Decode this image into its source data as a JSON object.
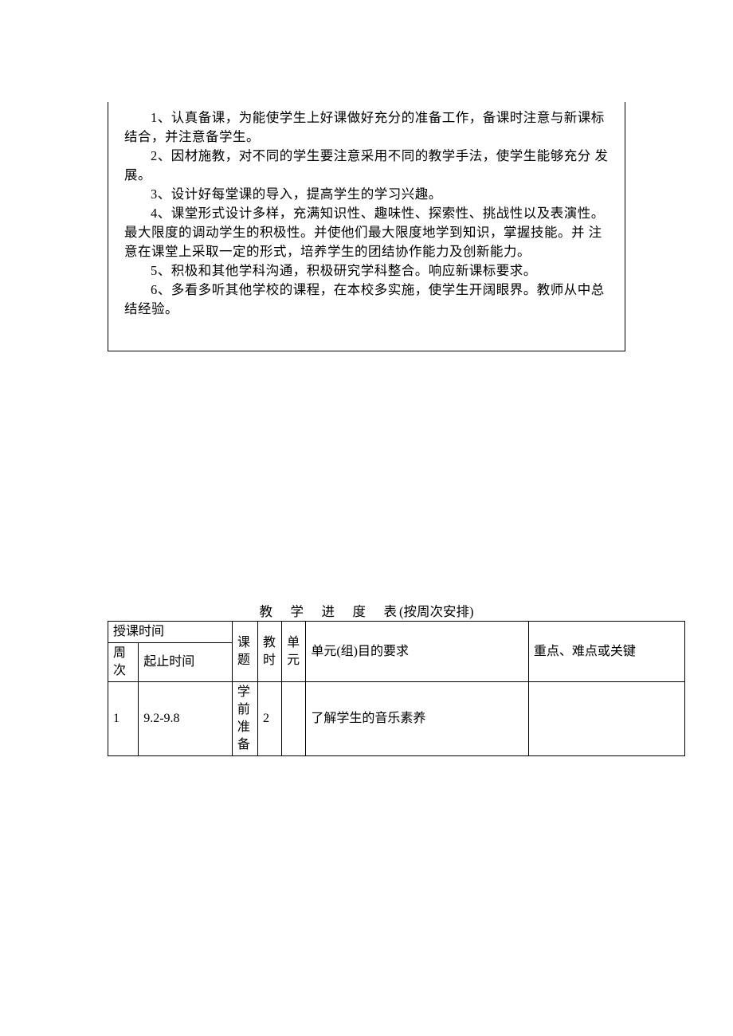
{
  "content_box": {
    "paragraphs": [
      "1、认真备课，为能使学生上好课做好充分的准备工作，备课时注意与新课标结合，并注意备学生。",
      "2、因材施教，对不同的学生要注意采用不同的教学手法，使学生能够充分 发展。",
      "3、设计好每堂课的导入，提高学生的学习兴趣。",
      "4、课堂形式设计多样，充满知识性、趣味性、探索性、挑战性以及表演性。 最大限度的调动学生的积极性。并使他们最大限度地学到知识，掌握技能。并 注意在课堂上采取一定的形式，培养学生的团结协作能力及创新能力。",
      "5、积极和其他学科沟通，积极研究学科整合。响应新课标要求。",
      "6、多看多听其他学校的课程，在本校多实施，使学生开阔眼界。教师从中总结经验。"
    ]
  },
  "schedule": {
    "title_main": "教　学　进　度　表",
    "title_note": "(按周次安排)",
    "headers": {
      "time_group": "授课时间",
      "week": "周次",
      "dates": "起止时间",
      "topic": "课题",
      "hours": "教时",
      "unit": "单元",
      "purpose": "单元(组)目的要求",
      "keypoints": "重点、难点或关键"
    },
    "rows": [
      {
        "week": "1",
        "dates": "9.2-9.8",
        "topic": "学前准备",
        "hours": "2",
        "unit": "",
        "purpose": "了解学生的音乐素养",
        "keypoints": ""
      }
    ]
  },
  "colors": {
    "background": "#ffffff",
    "text": "#000000",
    "border": "#000000"
  },
  "typography": {
    "body_fontsize": 16.5,
    "line_height": 24,
    "font_family": "SimSun"
  }
}
